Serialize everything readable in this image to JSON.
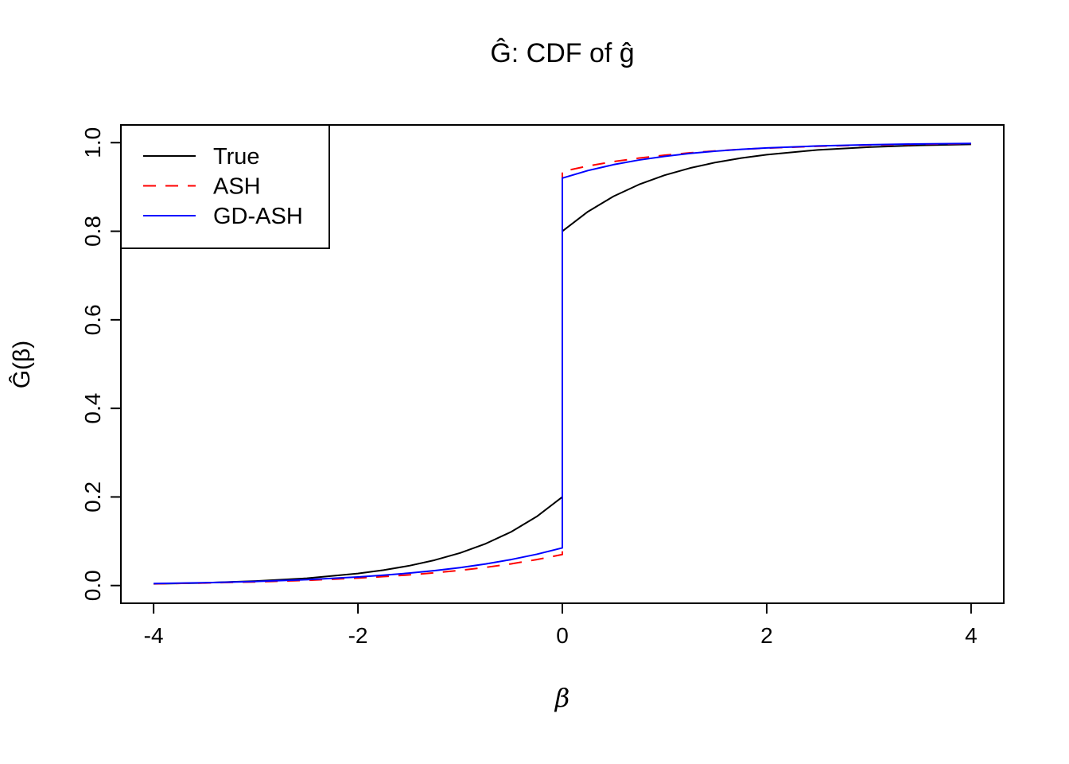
{
  "figure": {
    "background": "#ffffff",
    "axis_color": "#000000"
  },
  "chart_data": {
    "type": "line",
    "title": "Ĝ: CDF of ĝ",
    "xlabel": "β",
    "ylabel": "Ĝ(β)",
    "xlim": [
      -4,
      4
    ],
    "ylim": [
      0,
      1
    ],
    "grid": false,
    "legend_position": "top-left",
    "xticks": {
      "values": [
        -4,
        -2,
        0,
        2,
        4
      ],
      "labels": [
        "-4",
        "-2",
        "0",
        "2",
        "4"
      ]
    },
    "yticks": {
      "values": [
        0.0,
        0.2,
        0.4,
        0.6,
        0.8,
        1.0
      ],
      "labels": [
        "0.0",
        "0.2",
        "0.4",
        "0.6",
        "0.8",
        "1.0"
      ]
    },
    "series": [
      {
        "name": "True",
        "color": "#000000",
        "dash": "solid",
        "x": [
          -4,
          -3.5,
          -3,
          -2.5,
          -2,
          -1.75,
          -1.5,
          -1.25,
          -1,
          -0.75,
          -0.5,
          -0.25,
          0,
          0,
          0.25,
          0.5,
          0.75,
          1,
          1.25,
          1.5,
          1.75,
          2,
          2.5,
          3,
          3.5,
          4
        ],
        "y": [
          0.0037,
          0.006,
          0.01,
          0.0164,
          0.0271,
          0.0348,
          0.0446,
          0.0573,
          0.0736,
          0.0945,
          0.1213,
          0.1558,
          0.2,
          0.8,
          0.8442,
          0.8787,
          0.9055,
          0.9264,
          0.9427,
          0.9554,
          0.9652,
          0.9729,
          0.9836,
          0.99,
          0.994,
          0.9963
        ]
      },
      {
        "name": "ASH",
        "color": "#ff0000",
        "dash": "dashed",
        "x": [
          -4,
          -3.5,
          -3,
          -2.5,
          -2,
          -1.75,
          -1.5,
          -1.25,
          -1,
          -0.75,
          -0.5,
          -0.25,
          0,
          0,
          0.25,
          0.5,
          0.75,
          1,
          1.25,
          1.5,
          1.75,
          2,
          2.5,
          3,
          3.5,
          4
        ],
        "y": [
          0.004,
          0.0057,
          0.0082,
          0.0117,
          0.0168,
          0.0201,
          0.024,
          0.0287,
          0.0343,
          0.041,
          0.049,
          0.0586,
          0.07,
          0.935,
          0.9472,
          0.9572,
          0.9652,
          0.9717,
          0.9771,
          0.9814,
          0.9849,
          0.9877,
          0.9919,
          0.9947,
          0.9965,
          0.9977
        ]
      },
      {
        "name": "GD-ASH",
        "color": "#0000ff",
        "dash": "solid",
        "x": [
          -4,
          -3.5,
          -3,
          -2.5,
          -2,
          -1.75,
          -1.5,
          -1.25,
          -1,
          -0.75,
          -0.5,
          -0.25,
          0,
          0,
          0.25,
          0.5,
          0.75,
          1,
          1.25,
          1.5,
          1.75,
          2,
          2.5,
          3,
          3.5,
          4
        ],
        "y": [
          0.0044,
          0.0063,
          0.0092,
          0.0133,
          0.0193,
          0.0233,
          0.028,
          0.0337,
          0.0405,
          0.0488,
          0.0587,
          0.0706,
          0.085,
          0.92,
          0.937,
          0.9503,
          0.9608,
          0.9691,
          0.9757,
          0.9808,
          0.9849,
          0.9881,
          0.9926,
          0.9954,
          0.9971,
          0.9982
        ]
      }
    ],
    "legend": {
      "entries": [
        {
          "label": "True",
          "color": "#000000",
          "dash": "solid"
        },
        {
          "label": "ASH",
          "color": "#ff0000",
          "dash": "dashed"
        },
        {
          "label": "GD-ASH",
          "color": "#0000ff",
          "dash": "solid"
        }
      ]
    }
  }
}
